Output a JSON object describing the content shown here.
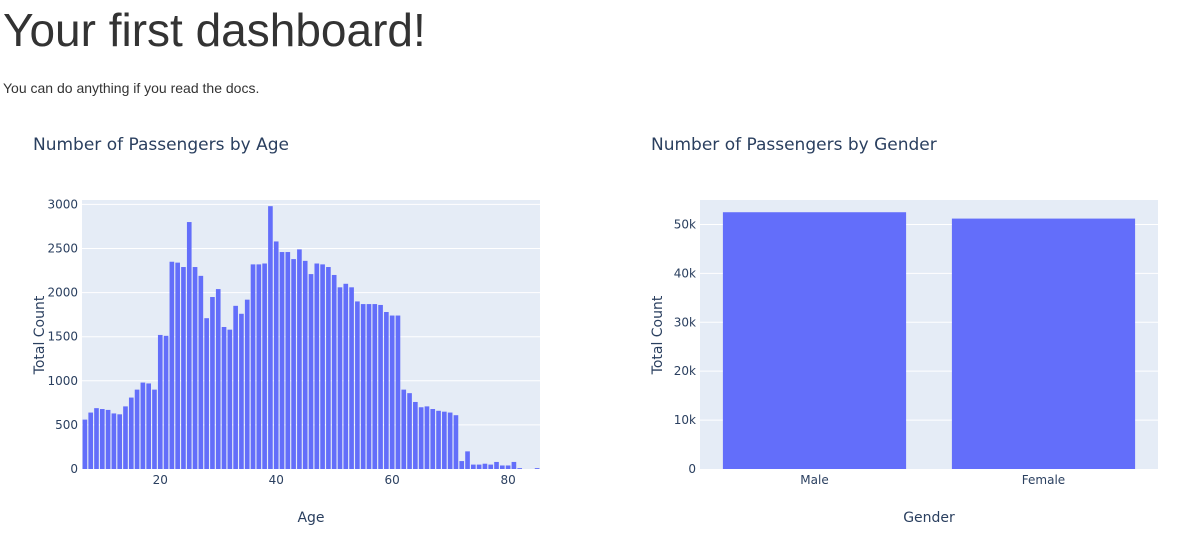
{
  "header": {
    "title": "Your first dashboard!",
    "subtitle": "You can do anything if you read the docs."
  },
  "theme": {
    "plot_bg": "#e5ecf6",
    "grid": "#ffffff",
    "bar": "#636efa",
    "text": "#2a3f5f"
  },
  "chart_data": [
    {
      "type": "bar",
      "title": "Number of Passengers by Age",
      "xlabel": "Age",
      "ylabel": "Total Count",
      "xlim": [
        6.5,
        85.5
      ],
      "ylim": [
        0,
        3050
      ],
      "xticks": [
        20,
        40,
        60,
        80
      ],
      "yticks": [
        0,
        500,
        1000,
        1500,
        2000,
        2500,
        3000
      ],
      "ytick_labels": [
        "0",
        "500",
        "1000",
        "1500",
        "2000",
        "2500",
        "3000"
      ],
      "grid": true,
      "x": [
        7,
        8,
        9,
        10,
        11,
        12,
        13,
        14,
        15,
        16,
        17,
        18,
        19,
        20,
        21,
        22,
        23,
        24,
        25,
        26,
        27,
        28,
        29,
        30,
        31,
        32,
        33,
        34,
        35,
        36,
        37,
        38,
        39,
        40,
        41,
        42,
        43,
        44,
        45,
        46,
        47,
        48,
        49,
        50,
        51,
        52,
        53,
        54,
        55,
        56,
        57,
        58,
        59,
        60,
        61,
        62,
        63,
        64,
        65,
        66,
        67,
        68,
        69,
        70,
        71,
        72,
        73,
        74,
        75,
        76,
        77,
        78,
        79,
        80,
        81,
        82,
        83,
        84,
        85
      ],
      "values": [
        560,
        640,
        690,
        680,
        670,
        630,
        620,
        710,
        810,
        900,
        980,
        970,
        900,
        1520,
        1510,
        2350,
        2340,
        2290,
        2800,
        2290,
        2190,
        1710,
        1950,
        2040,
        1610,
        1580,
        1850,
        1760,
        1920,
        2320,
        2320,
        2330,
        2980,
        2580,
        2460,
        2460,
        2380,
        2490,
        2360,
        2210,
        2330,
        2320,
        2290,
        2200,
        2060,
        2100,
        2060,
        1900,
        1870,
        1870,
        1870,
        1860,
        1780,
        1740,
        1740,
        900,
        860,
        760,
        700,
        710,
        680,
        660,
        650,
        640,
        610,
        90,
        200,
        50,
        50,
        60,
        50,
        80,
        40,
        40,
        80,
        10,
        0,
        0,
        10
      ]
    },
    {
      "type": "bar",
      "title": "Number of Passengers by Gender",
      "xlabel": "Gender",
      "ylabel": "Total Count",
      "ylim": [
        0,
        55000
      ],
      "yticks": [
        0,
        10000,
        20000,
        30000,
        40000,
        50000
      ],
      "ytick_labels": [
        "0",
        "10k",
        "20k",
        "30k",
        "40k",
        "50k"
      ],
      "grid": true,
      "categories": [
        "Male",
        "Female"
      ],
      "values": [
        52500,
        51200
      ]
    }
  ]
}
